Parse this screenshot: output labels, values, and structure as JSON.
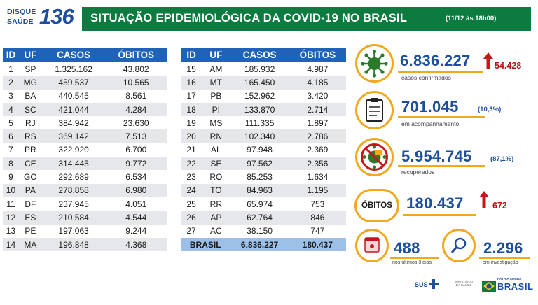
{
  "header": {
    "logo_line1": "DISQUE",
    "logo_line2": "SAÚDE",
    "logo_number": "136",
    "title": "SITUAÇÃO EPIDEMIOLÓGICA DA COVID-19 NO BRASIL",
    "date": "(11/12 às 18h00)"
  },
  "table": {
    "columns": [
      "ID",
      "UF",
      "CASOS",
      "ÓBITOS"
    ],
    "left_rows": [
      [
        "1",
        "SP",
        "1.325.162",
        "43.802"
      ],
      [
        "2",
        "MG",
        "459.537",
        "10.565"
      ],
      [
        "3",
        "BA",
        "440.545",
        "8.561"
      ],
      [
        "4",
        "SC",
        "421.044",
        "4.284"
      ],
      [
        "5",
        "RJ",
        "384.942",
        "23.630"
      ],
      [
        "6",
        "RS",
        "369.142",
        "7.513"
      ],
      [
        "7",
        "PR",
        "322.920",
        "6.700"
      ],
      [
        "8",
        "CE",
        "314.445",
        "9.772"
      ],
      [
        "9",
        "GO",
        "292.689",
        "6.534"
      ],
      [
        "10",
        "PA",
        "278.858",
        "6.980"
      ],
      [
        "11",
        "DF",
        "237.945",
        "4.051"
      ],
      [
        "12",
        "ES",
        "210.584",
        "4.544"
      ],
      [
        "13",
        "PE",
        "197.063",
        "9.244"
      ],
      [
        "14",
        "MA",
        "196.848",
        "4.368"
      ]
    ],
    "right_rows": [
      [
        "15",
        "AM",
        "185.932",
        "4.987"
      ],
      [
        "16",
        "MT",
        "165.450",
        "4.185"
      ],
      [
        "17",
        "PB",
        "152.962",
        "3.420"
      ],
      [
        "18",
        "PI",
        "133.870",
        "2.714"
      ],
      [
        "19",
        "MS",
        "111.335",
        "1.897"
      ],
      [
        "20",
        "RN",
        "102.340",
        "2.786"
      ],
      [
        "21",
        "AL",
        "97.948",
        "2.369"
      ],
      [
        "22",
        "SE",
        "97.562",
        "2.356"
      ],
      [
        "23",
        "RO",
        "85.253",
        "1.634"
      ],
      [
        "24",
        "TO",
        "84.963",
        "1.195"
      ],
      [
        "25",
        "RR",
        "65.974",
        "753"
      ],
      [
        "26",
        "AP",
        "62.764",
        "846"
      ],
      [
        "27",
        "AC",
        "38.150",
        "747"
      ]
    ],
    "total": {
      "label": "BRASIL",
      "casos": "6.836.227",
      "obitos": "180.437"
    }
  },
  "indicators": {
    "confirmed": {
      "value": "6.836.227",
      "delta": "54.428",
      "label": "casos confirmados",
      "icon": "virus-icon"
    },
    "monitoring": {
      "value": "701.045",
      "pct": "(10,3%)",
      "label": "em acompanhamento",
      "icon": "clipboard-icon"
    },
    "recovered": {
      "value": "5.954.745",
      "pct": "(87,1%)",
      "label": "recuperados",
      "icon": "virus-crossed-icon"
    },
    "deaths": {
      "badge": "ÓBITOS",
      "value": "180.437",
      "delta": "672"
    },
    "recent_deaths": {
      "value": "488",
      "label": "nos últimos 3 dias",
      "icon": "calendar-icon"
    },
    "investigation": {
      "value": "2.296",
      "label": "em investigação",
      "icon": "magnifier-icon"
    }
  },
  "footer": {
    "sus": "SUS",
    "ministry": "MINISTÉRIO DA SAÚDE",
    "brasil_small": "PÁTRIA AMADA",
    "brasil": "BRASIL"
  },
  "colors": {
    "header_green": "#0d7a40",
    "table_blue": "#1f62b7",
    "accent_orange": "#f2a81c",
    "text_blue": "#1d4f9c",
    "delta_red": "#b31217"
  }
}
